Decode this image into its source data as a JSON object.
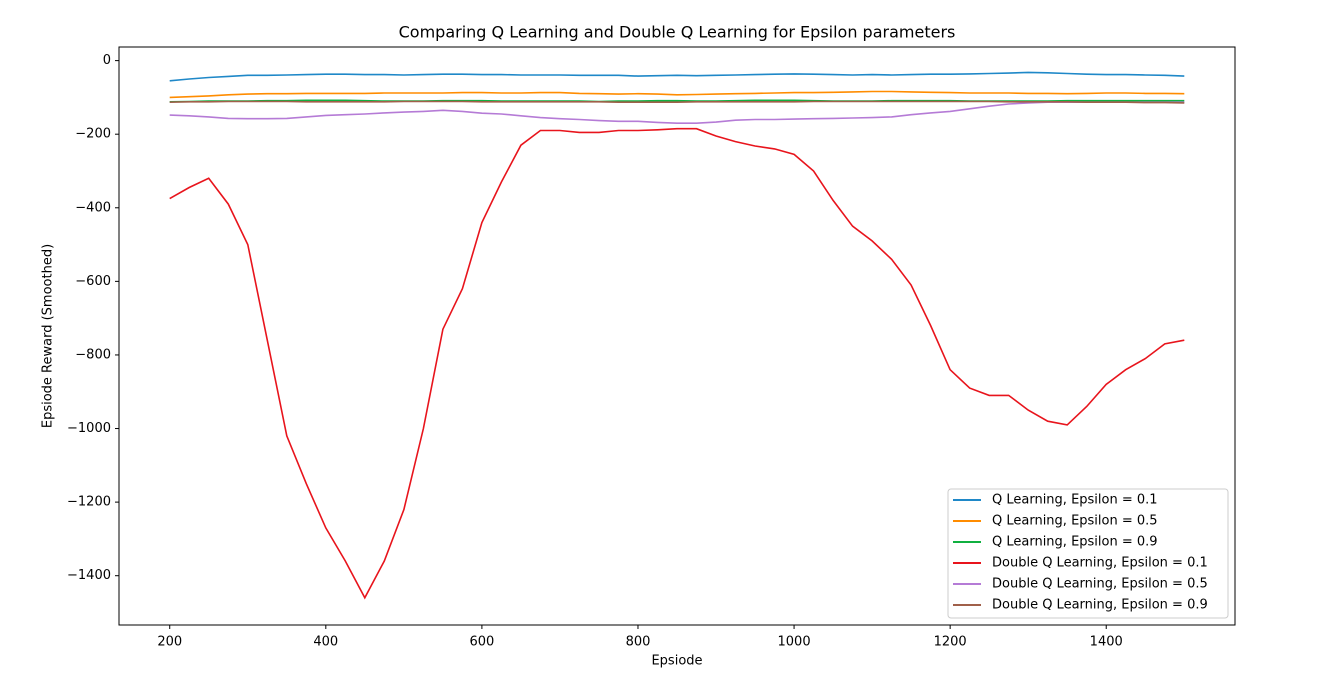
{
  "chart_data": {
    "type": "line",
    "title": "Comparing Q Learning and Double Q Learning for Epsilon parameters",
    "xlabel": "Epsiode",
    "ylabel": "Epsiode Reward (Smoothed)",
    "x": [
      200,
      225,
      250,
      275,
      300,
      325,
      350,
      375,
      400,
      425,
      450,
      475,
      500,
      525,
      550,
      575,
      600,
      625,
      650,
      675,
      700,
      725,
      750,
      775,
      800,
      825,
      850,
      875,
      900,
      925,
      950,
      975,
      1000,
      1025,
      1050,
      1075,
      1100,
      1125,
      1150,
      1175,
      1200,
      1225,
      1250,
      1275,
      1300,
      1325,
      1350,
      1375,
      1400,
      1425,
      1450,
      1475,
      1500
    ],
    "series": [
      {
        "name": "Q Learning, Epsilon = 0.1",
        "color": "#1f88c8",
        "values": [
          -55,
          -50,
          -46,
          -43,
          -40,
          -40,
          -39,
          -38,
          -37,
          -37,
          -38,
          -38,
          -39,
          -38,
          -37,
          -37,
          -38,
          -38,
          -39,
          -39,
          -39,
          -40,
          -40,
          -40,
          -42,
          -41,
          -40,
          -41,
          -40,
          -39,
          -38,
          -37,
          -36,
          -37,
          -38,
          -39,
          -38,
          -39,
          -38,
          -37,
          -37,
          -36,
          -35,
          -34,
          -32,
          -33,
          -35,
          -37,
          -38,
          -38,
          -39,
          -40,
          -42
        ]
      },
      {
        "name": "Q Learning, Epsilon = 0.5",
        "color": "#ff8c00",
        "values": [
          -100,
          -98,
          -96,
          -93,
          -91,
          -90,
          -90,
          -89,
          -89,
          -89,
          -89,
          -88,
          -88,
          -88,
          -88,
          -87,
          -87,
          -88,
          -88,
          -87,
          -87,
          -89,
          -90,
          -91,
          -90,
          -91,
          -93,
          -92,
          -91,
          -90,
          -89,
          -88,
          -87,
          -87,
          -86,
          -85,
          -84,
          -84,
          -85,
          -86,
          -87,
          -88,
          -88,
          -88,
          -89,
          -89,
          -90,
          -89,
          -88,
          -88,
          -89,
          -89,
          -90
        ]
      },
      {
        "name": "Q Learning, Epsilon = 0.9",
        "color": "#10b040",
        "values": [
          -112,
          -111,
          -110,
          -110,
          -110,
          -109,
          -109,
          -108,
          -108,
          -108,
          -109,
          -110,
          -110,
          -110,
          -109,
          -109,
          -109,
          -110,
          -110,
          -110,
          -110,
          -110,
          -111,
          -110,
          -110,
          -109,
          -109,
          -110,
          -110,
          -109,
          -108,
          -108,
          -108,
          -109,
          -110,
          -110,
          -110,
          -109,
          -109,
          -109,
          -109,
          -110,
          -110,
          -110,
          -110,
          -110,
          -109,
          -109,
          -109,
          -109,
          -109,
          -109,
          -109
        ]
      },
      {
        "name": "Double Q Learning, Epsilon = 0.1",
        "color": "#e8141c",
        "values": [
          -375,
          -345,
          -320,
          -390,
          -500,
          -760,
          -1020,
          -1150,
          -1270,
          -1360,
          -1460,
          -1360,
          -1220,
          -1000,
          -730,
          -620,
          -440,
          -330,
          -230,
          -190,
          -190,
          -195,
          -195,
          -190,
          -190,
          -188,
          -185,
          -185,
          -205,
          -220,
          -232,
          -240,
          -255,
          -300,
          -380,
          -450,
          -490,
          -540,
          -610,
          -720,
          -840,
          -890,
          -910,
          -910,
          -950,
          -980,
          -990,
          -940,
          -880,
          -840,
          -810,
          -770,
          -760
        ]
      },
      {
        "name": "Double Q Learning, Epsilon = 0.5",
        "color": "#b57bd6",
        "values": [
          -148,
          -150,
          -153,
          -157,
          -158,
          -158,
          -157,
          -153,
          -149,
          -147,
          -145,
          -142,
          -140,
          -138,
          -135,
          -138,
          -143,
          -145,
          -150,
          -155,
          -158,
          -160,
          -163,
          -165,
          -165,
          -168,
          -170,
          -170,
          -167,
          -162,
          -160,
          -160,
          -159,
          -158,
          -157,
          -156,
          -155,
          -153,
          -147,
          -142,
          -138,
          -131,
          -124,
          -118,
          -115,
          -113,
          -113,
          -113,
          -113,
          -113,
          -113,
          -113,
          -113
        ]
      },
      {
        "name": "Double Q Learning, Epsilon = 0.9",
        "color": "#a0604a",
        "values": [
          -113,
          -112,
          -112,
          -111,
          -111,
          -111,
          -111,
          -112,
          -112,
          -112,
          -112,
          -112,
          -111,
          -111,
          -111,
          -111,
          -112,
          -112,
          -112,
          -112,
          -112,
          -112,
          -112,
          -113,
          -113,
          -113,
          -113,
          -112,
          -112,
          -112,
          -112,
          -112,
          -112,
          -111,
          -111,
          -111,
          -111,
          -111,
          -111,
          -111,
          -111,
          -111,
          -111,
          -112,
          -112,
          -112,
          -112,
          -113,
          -113,
          -113,
          -114,
          -114,
          -115
        ]
      }
    ],
    "xlim": [
      135,
      1565
    ],
    "ylim": [
      -1534,
      37
    ],
    "xticks": [
      200,
      400,
      600,
      800,
      1000,
      1200,
      1400
    ],
    "yticks": [
      0,
      {
        "value": -200,
        "label": "−200"
      },
      {
        "value": -400,
        "label": "−400"
      },
      {
        "value": -600,
        "label": "−600"
      },
      {
        "value": -800,
        "label": "−800"
      },
      {
        "value": -1000,
        "label": "−1000"
      },
      {
        "value": -1200,
        "label": "−1200"
      },
      {
        "value": -1400,
        "label": "−1400"
      }
    ],
    "legend": "lower right"
  }
}
